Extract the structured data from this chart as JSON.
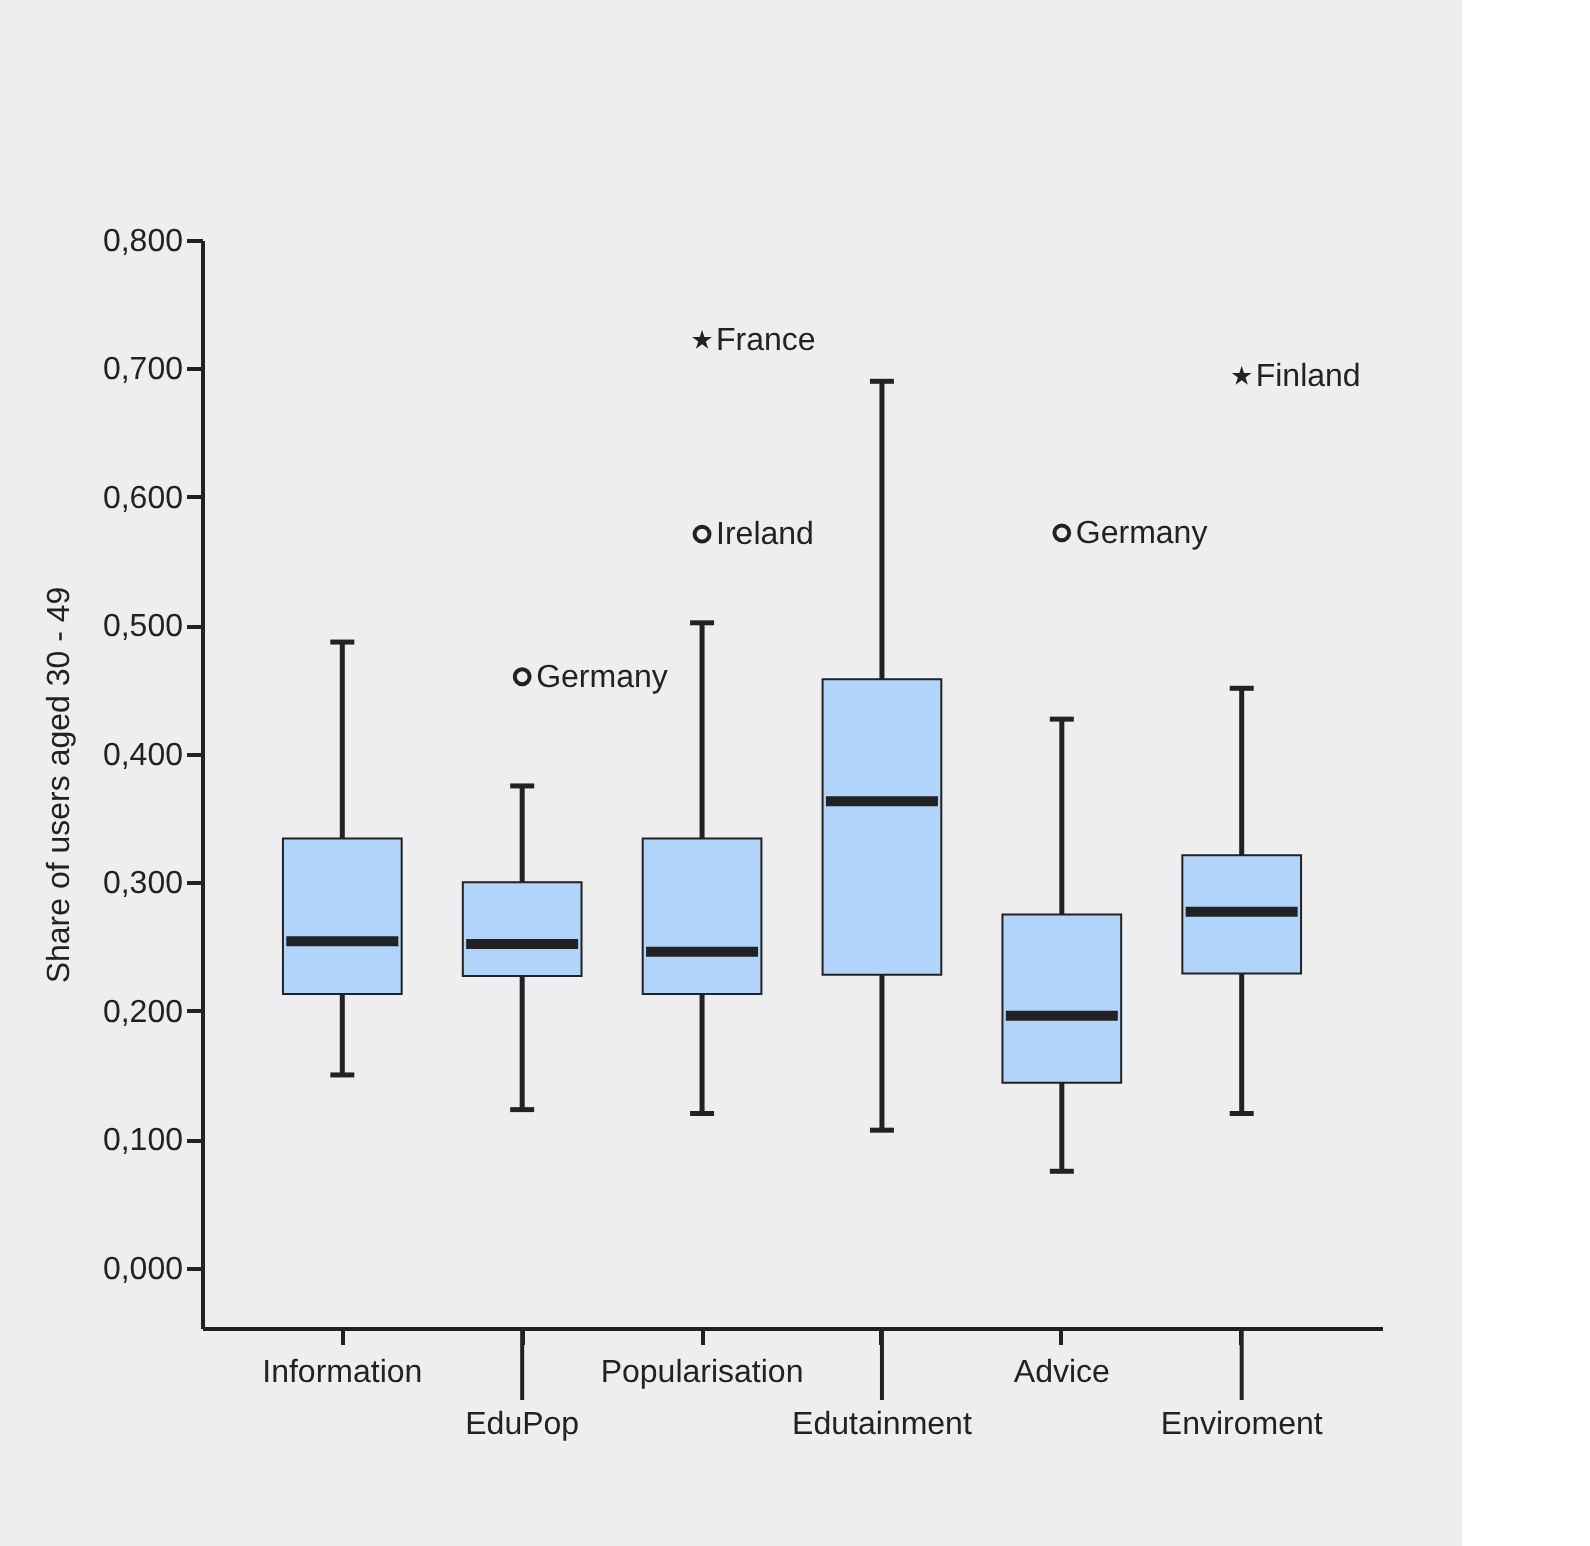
{
  "chart_data": {
    "type": "box",
    "ylabel": "Share of users aged 30 - 49",
    "categories": [
      "Information",
      "EduPop",
      "Popularisation",
      "Edutainment",
      "Advice",
      "Enviroment"
    ],
    "series": [
      {
        "color": "#b0d4fa",
        "boxes": [
          {
            "low": 0.15,
            "q1": 0.213,
            "median": 0.254,
            "q3": 0.334,
            "high": 0.487
          },
          {
            "low": 0.123,
            "q1": 0.227,
            "median": 0.252,
            "q3": 0.3,
            "high": 0.375,
            "outliers": [
              0.46
            ]
          },
          {
            "low": 0.12,
            "q1": 0.213,
            "median": 0.246,
            "q3": 0.334,
            "high": 0.502,
            "outliers": [
              0.571,
              0.722
            ]
          },
          {
            "low": 0.107,
            "q1": 0.228,
            "median": 0.363,
            "q3": 0.458,
            "high": 0.69
          },
          {
            "low": 0.075,
            "q1": 0.144,
            "median": 0.196,
            "q3": 0.275,
            "high": 0.427,
            "outliers": [
              0.572
            ]
          },
          {
            "low": 0.12,
            "q1": 0.229,
            "median": 0.277,
            "q3": 0.321,
            "high": 0.451,
            "outliers": [
              0.694
            ]
          }
        ]
      }
    ],
    "annotations": [
      "Germany",
      "Ireland",
      "France",
      "Germany",
      "Finland"
    ],
    "ylim": [
      -0.047,
      0.8
    ],
    "yticks": [
      {
        "value": 0,
        "label": "0,000"
      },
      {
        "value": 0.1,
        "label": "0,100"
      },
      {
        "value": 0.2,
        "label": "0,200"
      },
      {
        "value": 0.3,
        "label": "0,300"
      },
      {
        "value": 0.4,
        "label": "0,400"
      },
      {
        "value": 0.5,
        "label": "0,500"
      },
      {
        "value": 0.6,
        "label": "0,600"
      },
      {
        "value": 0.7,
        "label": "0,700"
      },
      {
        "value": 0.8,
        "label": "0,800"
      }
    ],
    "grid": false
  }
}
